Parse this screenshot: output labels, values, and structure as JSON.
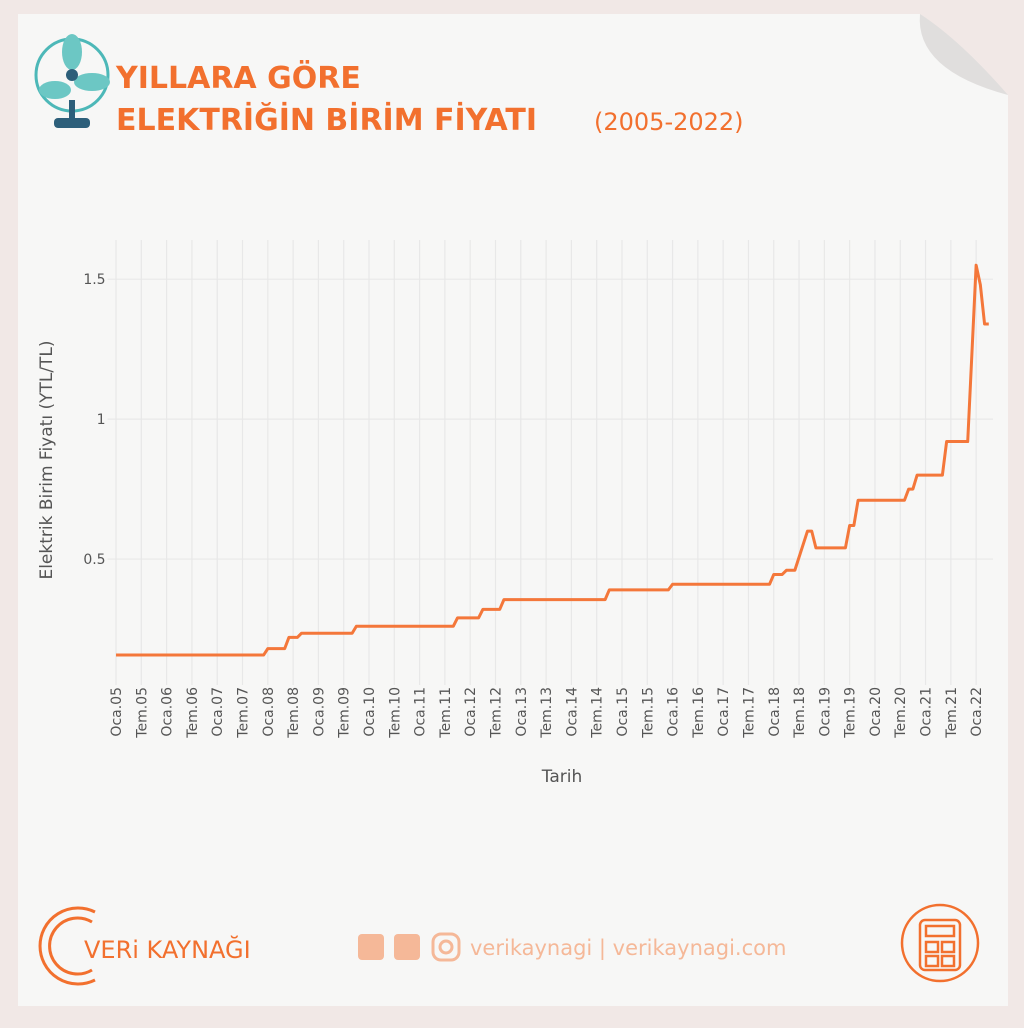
{
  "header": {
    "title_line1": "YILLARA GÖRE",
    "title_line2": "ELEKTRİĞİN BİRİM FİYATI",
    "title_years": "(2005-2022)"
  },
  "footer": {
    "brand": "VERi KAYNAĞI",
    "links": "verikaynagi | verikaynagi.com"
  },
  "chart_data": {
    "type": "line",
    "xlabel": "Tarih",
    "ylabel": "Elektrik Birim Fiyatı (YTL/TL)",
    "x": [
      "2005-01",
      "2007-12",
      "2008-01",
      "2008-05",
      "2008-06",
      "2008-08",
      "2008-09",
      "2009-09",
      "2009-10",
      "2011-09",
      "2011-10",
      "2012-03",
      "2012-04",
      "2012-08",
      "2012-09",
      "2014-09",
      "2014-10",
      "2015-12",
      "2016-01",
      "2017-12",
      "2018-01",
      "2018-03",
      "2018-04",
      "2018-06",
      "2018-09",
      "2018-10",
      "2018-11",
      "2019-06",
      "2019-07",
      "2019-08",
      "2019-09",
      "2020-08",
      "2020-09",
      "2020-10",
      "2020-11",
      "2021-05",
      "2021-06",
      "2021-11",
      "2022-01",
      "2022-02",
      "2022-03",
      "2022-04"
    ],
    "series": [
      {
        "name": "Elektrik Birim Fiyatı",
        "color": "#f4773a",
        "values": [
          0.157,
          0.157,
          0.18,
          0.18,
          0.22,
          0.22,
          0.235,
          0.235,
          0.26,
          0.26,
          0.29,
          0.29,
          0.32,
          0.32,
          0.355,
          0.355,
          0.39,
          0.39,
          0.41,
          0.41,
          0.445,
          0.445,
          0.46,
          0.46,
          0.6,
          0.6,
          0.54,
          0.54,
          0.62,
          0.62,
          0.71,
          0.71,
          0.75,
          0.75,
          0.8,
          0.8,
          0.92,
          0.92,
          1.55,
          1.48,
          1.34,
          1.34
        ]
      }
    ],
    "xlim": [
      "2004-11",
      "2022-05"
    ],
    "xticks": [
      {
        "value": "2005-01",
        "label": "Oca.05"
      },
      {
        "value": "2005-07",
        "label": "Tem.05"
      },
      {
        "value": "2006-01",
        "label": "Oca.06"
      },
      {
        "value": "2006-07",
        "label": "Tem.06"
      },
      {
        "value": "2007-01",
        "label": "Oca.07"
      },
      {
        "value": "2007-07",
        "label": "Tem.07"
      },
      {
        "value": "2008-01",
        "label": "Oca.08"
      },
      {
        "value": "2008-07",
        "label": "Tem.08"
      },
      {
        "value": "2009-01",
        "label": "Oca.09"
      },
      {
        "value": "2009-07",
        "label": "Tem.09"
      },
      {
        "value": "2010-01",
        "label": "Oca.10"
      },
      {
        "value": "2010-07",
        "label": "Tem.10"
      },
      {
        "value": "2011-01",
        "label": "Oca.11"
      },
      {
        "value": "2011-07",
        "label": "Tem.11"
      },
      {
        "value": "2012-01",
        "label": "Oca.12"
      },
      {
        "value": "2012-07",
        "label": "Tem.12"
      },
      {
        "value": "2013-01",
        "label": "Oca.13"
      },
      {
        "value": "2013-07",
        "label": "Tem.13"
      },
      {
        "value": "2014-01",
        "label": "Oca.14"
      },
      {
        "value": "2014-07",
        "label": "Tem.14"
      },
      {
        "value": "2015-01",
        "label": "Oca.15"
      },
      {
        "value": "2015-07",
        "label": "Tem.15"
      },
      {
        "value": "2016-01",
        "label": "Oca.16"
      },
      {
        "value": "2016-07",
        "label": "Tem.16"
      },
      {
        "value": "2017-01",
        "label": "Oca.17"
      },
      {
        "value": "2017-07",
        "label": "Tem.17"
      },
      {
        "value": "2018-01",
        "label": "Oca.18"
      },
      {
        "value": "2018-07",
        "label": "Tem.18"
      },
      {
        "value": "2019-01",
        "label": "Oca.19"
      },
      {
        "value": "2019-07",
        "label": "Tem.19"
      },
      {
        "value": "2020-01",
        "label": "Oca.20"
      },
      {
        "value": "2020-07",
        "label": "Tem.20"
      },
      {
        "value": "2021-01",
        "label": "Oca.21"
      },
      {
        "value": "2021-07",
        "label": "Tem.21"
      },
      {
        "value": "2022-01",
        "label": "Oca.22"
      }
    ],
    "ylim": [
      0.05,
      1.64
    ],
    "yticks": [
      0.5,
      1,
      1.5
    ],
    "grid": true
  }
}
